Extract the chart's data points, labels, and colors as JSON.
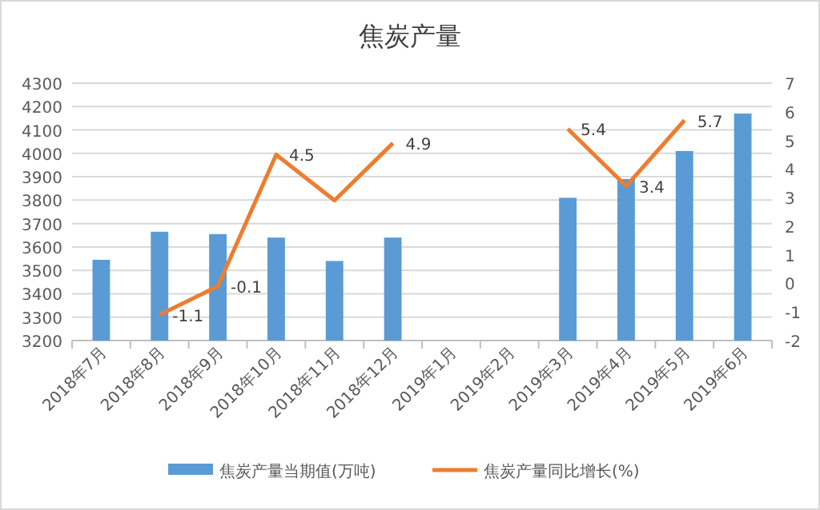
{
  "chart_data": {
    "type": "bar",
    "title": "焦炭产量",
    "categories": [
      "2018年7月",
      "2018年8月",
      "2018年9月",
      "2018年10月",
      "2018年11月",
      "2018年12月",
      "2019年1月",
      "2019年2月",
      "2019年3月",
      "2019年4月",
      "2019年5月",
      "2019年6月"
    ],
    "series": [
      {
        "name": "焦炭产量当期值(万吨)",
        "color": "#5b9bd5",
        "values": [
          3545,
          3665,
          3655,
          3640,
          3540,
          3640,
          null,
          null,
          3810,
          3890,
          4010,
          4170
        ]
      },
      {
        "name": "焦炭产量同比增长(%)",
        "type": "line",
        "axis": "y2",
        "color": "#ed7d31",
        "values": [
          null,
          -1.1,
          -0.1,
          4.5,
          2.9,
          4.9,
          null,
          null,
          5.4,
          3.4,
          5.7,
          null
        ],
        "value_labels": [
          null,
          "-1.1",
          "-0.1",
          "4.5",
          null,
          "4.9",
          null,
          null,
          "5.4",
          "3.4",
          "5.7",
          null
        ]
      }
    ],
    "ylim": [
      3200,
      4300
    ],
    "yticks": [
      3200,
      3300,
      3400,
      3500,
      3600,
      3700,
      3800,
      3900,
      4000,
      4100,
      4200,
      4300
    ],
    "y2lim": [
      -2,
      7
    ],
    "y2ticks": [
      -2,
      -1,
      0,
      1,
      2,
      3,
      4,
      5,
      6,
      7
    ],
    "grid": "y",
    "legend": "bottom",
    "marker": "none"
  }
}
